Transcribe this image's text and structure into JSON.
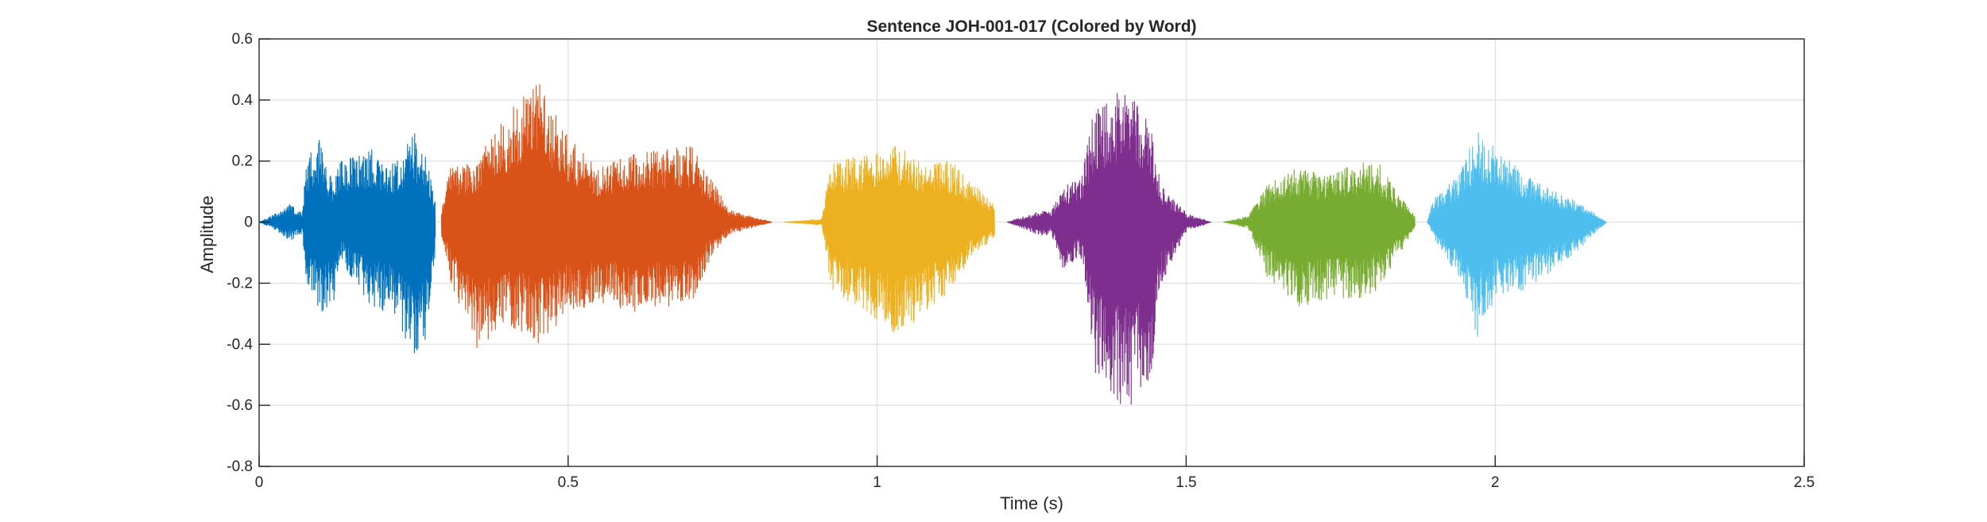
{
  "chart_data": {
    "type": "line",
    "title": "Sentence JOH-001-017 (Colored by Word)",
    "xlabel": "Time (s)",
    "ylabel": "Amplitude",
    "xlim": [
      0,
      2.5
    ],
    "ylim": [
      -0.8,
      0.6
    ],
    "xticks": [
      0,
      0.5,
      1,
      1.5,
      2,
      2.5
    ],
    "xtick_labels": [
      "0",
      "0.5",
      "1",
      "1.5",
      "2",
      "2.5"
    ],
    "yticks": [
      -0.8,
      -0.6,
      -0.4,
      -0.2,
      0,
      0.2,
      0.4,
      0.6
    ],
    "ytick_labels": [
      "-0.8",
      "-0.6",
      "-0.4",
      "-0.2",
      "0",
      "0.2",
      "0.4",
      "0.6"
    ],
    "grid": true,
    "series": [
      {
        "color": "#0072BD",
        "t_start": 0.0,
        "t_end": 0.285,
        "envelope": [
          [
            0.0,
            0.0,
            0.0
          ],
          [
            0.02,
            0.02,
            -0.02
          ],
          [
            0.05,
            0.06,
            -0.06
          ],
          [
            0.07,
            0.03,
            -0.04
          ],
          [
            0.075,
            0.2,
            -0.2
          ],
          [
            0.1,
            0.28,
            -0.3
          ],
          [
            0.12,
            0.12,
            -0.28
          ],
          [
            0.13,
            0.2,
            -0.12
          ],
          [
            0.18,
            0.24,
            -0.28
          ],
          [
            0.22,
            0.2,
            -0.3
          ],
          [
            0.25,
            0.3,
            -0.45
          ],
          [
            0.27,
            0.22,
            -0.38
          ],
          [
            0.285,
            0.08,
            -0.1
          ]
        ]
      },
      {
        "color": "#D95319",
        "t_start": 0.295,
        "t_end": 0.83,
        "envelope": [
          [
            0.295,
            0.05,
            -0.05
          ],
          [
            0.31,
            0.18,
            -0.2
          ],
          [
            0.35,
            0.2,
            -0.42
          ],
          [
            0.4,
            0.35,
            -0.33
          ],
          [
            0.45,
            0.47,
            -0.4
          ],
          [
            0.5,
            0.28,
            -0.3
          ],
          [
            0.55,
            0.18,
            -0.26
          ],
          [
            0.6,
            0.22,
            -0.3
          ],
          [
            0.65,
            0.24,
            -0.28
          ],
          [
            0.7,
            0.25,
            -0.26
          ],
          [
            0.73,
            0.15,
            -0.12
          ],
          [
            0.76,
            0.04,
            -0.04
          ],
          [
            0.83,
            0.0,
            0.0
          ]
        ]
      },
      {
        "color": "#EDB120",
        "t_start": 0.85,
        "t_end": 1.19,
        "envelope": [
          [
            0.85,
            0.0,
            0.0
          ],
          [
            0.91,
            0.01,
            -0.01
          ],
          [
            0.925,
            0.2,
            -0.22
          ],
          [
            0.98,
            0.22,
            -0.3
          ],
          [
            1.03,
            0.25,
            -0.38
          ],
          [
            1.08,
            0.2,
            -0.3
          ],
          [
            1.12,
            0.2,
            -0.22
          ],
          [
            1.15,
            0.14,
            -0.12
          ],
          [
            1.19,
            0.06,
            -0.05
          ]
        ]
      },
      {
        "color": "#7E2F8E",
        "t_start": 1.21,
        "t_end": 1.54,
        "envelope": [
          [
            1.21,
            0.0,
            0.0
          ],
          [
            1.27,
            0.04,
            -0.05
          ],
          [
            1.28,
            0.03,
            -0.03
          ],
          [
            1.3,
            0.12,
            -0.15
          ],
          [
            1.33,
            0.14,
            -0.12
          ],
          [
            1.35,
            0.36,
            -0.5
          ],
          [
            1.4,
            0.45,
            -0.62
          ],
          [
            1.44,
            0.35,
            -0.55
          ],
          [
            1.46,
            0.12,
            -0.2
          ],
          [
            1.5,
            0.03,
            -0.03
          ],
          [
            1.54,
            0.0,
            0.0
          ]
        ]
      },
      {
        "color": "#77AC30",
        "t_start": 1.56,
        "t_end": 1.87,
        "envelope": [
          [
            1.56,
            0.0,
            0.0
          ],
          [
            1.6,
            0.02,
            -0.02
          ],
          [
            1.63,
            0.12,
            -0.18
          ],
          [
            1.68,
            0.18,
            -0.28
          ],
          [
            1.73,
            0.15,
            -0.25
          ],
          [
            1.78,
            0.2,
            -0.26
          ],
          [
            1.81,
            0.2,
            -0.22
          ],
          [
            1.84,
            0.1,
            -0.12
          ],
          [
            1.87,
            0.02,
            -0.02
          ]
        ]
      },
      {
        "color": "#4DBEEE",
        "t_start": 1.89,
        "t_end": 2.18,
        "envelope": [
          [
            1.89,
            0.0,
            0.0
          ],
          [
            1.9,
            0.08,
            -0.05
          ],
          [
            1.94,
            0.15,
            -0.2
          ],
          [
            1.97,
            0.3,
            -0.38
          ],
          [
            2.0,
            0.25,
            -0.25
          ],
          [
            2.05,
            0.15,
            -0.22
          ],
          [
            2.1,
            0.1,
            -0.15
          ],
          [
            2.14,
            0.06,
            -0.08
          ],
          [
            2.18,
            0.0,
            0.0
          ]
        ]
      }
    ]
  }
}
